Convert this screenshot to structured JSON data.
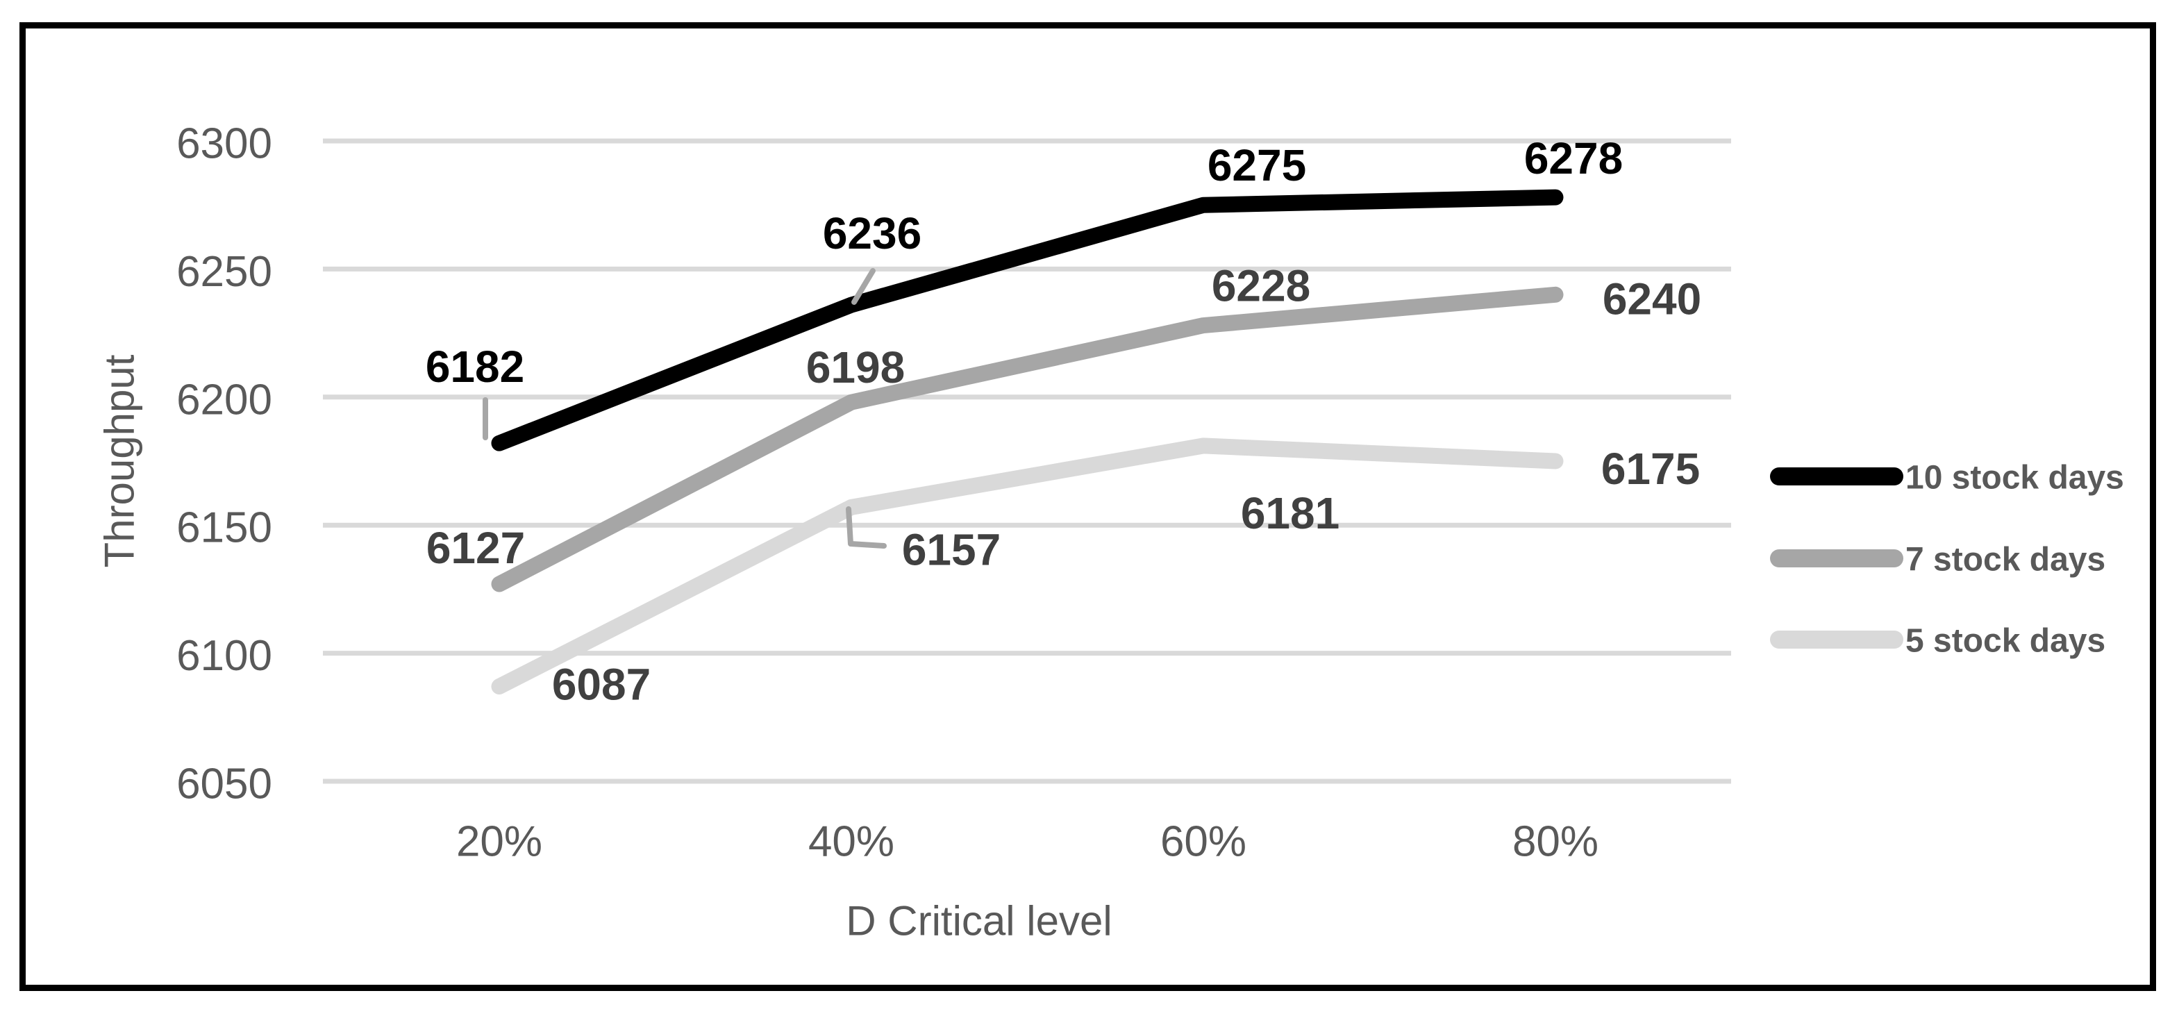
{
  "chart_data": {
    "type": "line",
    "xlabel": "D Critical level",
    "ylabel": "Throughput",
    "categories": [
      "20%",
      "40%",
      "60%",
      "80%"
    ],
    "series": [
      {
        "name": "10 stock days",
        "color": "#000000",
        "label_color": "#000000",
        "values": [
          6182,
          6236,
          6275,
          6278
        ]
      },
      {
        "name": "7 stock days",
        "color": "#A6A6A6",
        "label_color": "#404040",
        "values": [
          6127,
          6198,
          6228,
          6240
        ]
      },
      {
        "name": "5 stock days",
        "color": "#D9D9D9",
        "label_color": "#404040",
        "values": [
          6087,
          6157,
          6181,
          6175
        ]
      }
    ],
    "y_ticks": [
      6050,
      6100,
      6150,
      6200,
      6250,
      6300
    ],
    "ylim": [
      6050,
      6300
    ],
    "grid": "horizontal-only",
    "legend_position": "right",
    "data_labels": true,
    "colors": {
      "gridline": "#D9D9D9",
      "axis_text": "#595959",
      "legend_text": "#595959",
      "leader_line": "#A6A6A6",
      "frame_border": "#000000",
      "background": "#FFFFFF"
    }
  }
}
